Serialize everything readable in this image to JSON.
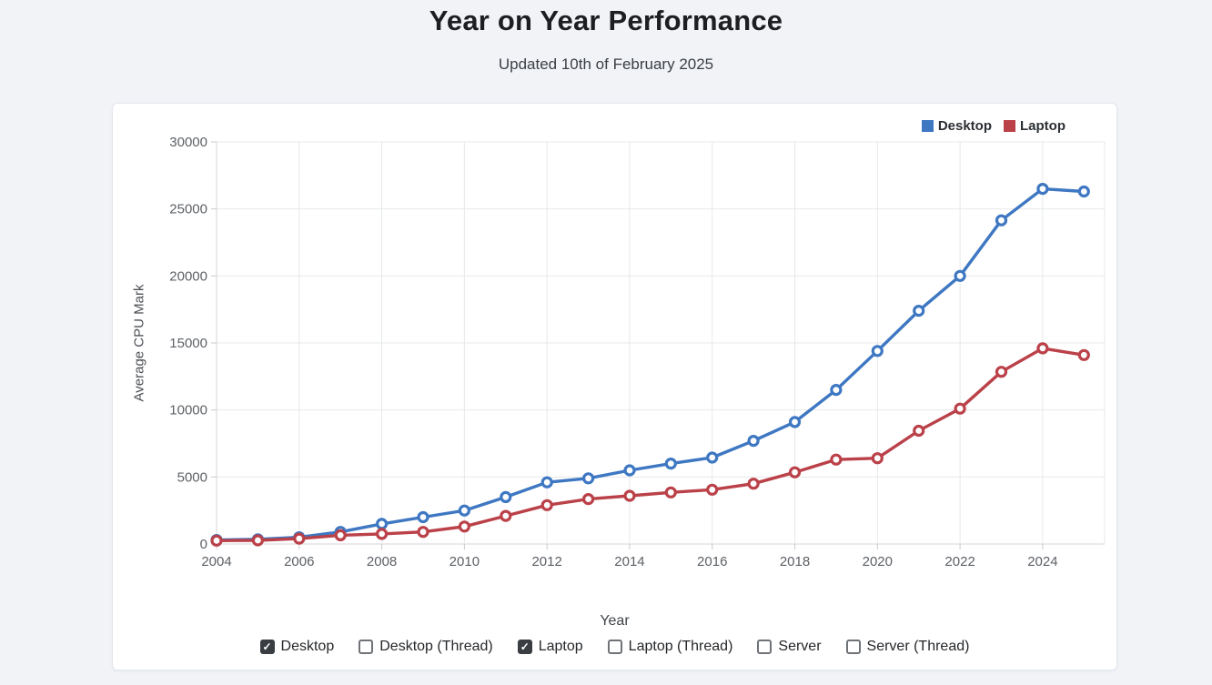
{
  "header": {
    "title": "Year on Year Performance",
    "subtitle": "Updated 10th of February 2025"
  },
  "chart_data": {
    "type": "line",
    "title": "Year on Year Performance",
    "xlabel": "Year",
    "ylabel": "Average CPU Mark",
    "x": [
      2004,
      2005,
      2006,
      2007,
      2008,
      2009,
      2010,
      2011,
      2012,
      2013,
      2014,
      2015,
      2016,
      2017,
      2018,
      2019,
      2020,
      2021,
      2022,
      2023,
      2024,
      2025
    ],
    "series": [
      {
        "name": "Desktop",
        "color": "#3e77c2",
        "values": [
          300,
          350,
          500,
          900,
          1500,
          2000,
          2500,
          3500,
          4600,
          4900,
          5500,
          6000,
          6450,
          7700,
          9100,
          11500,
          14400,
          17400,
          20000,
          24150,
          26500,
          26300
        ]
      },
      {
        "name": "Laptop",
        "color": "#bb4149",
        "values": [
          250,
          270,
          400,
          650,
          750,
          900,
          1300,
          2100,
          2900,
          3350,
          3600,
          3850,
          4050,
          4500,
          5350,
          6300,
          6400,
          8450,
          10100,
          12850,
          14600,
          14100
        ]
      }
    ],
    "xlim": [
      2004,
      2025.5
    ],
    "ylim": [
      0,
      30000
    ],
    "ytick_step": 5000,
    "xticks": [
      2004,
      2006,
      2008,
      2010,
      2012,
      2014,
      2016,
      2018,
      2020,
      2022,
      2024
    ],
    "grid": true,
    "legend_position": "top-right"
  },
  "filters": [
    {
      "label": "Desktop",
      "checked": true
    },
    {
      "label": "Desktop (Thread)",
      "checked": false
    },
    {
      "label": "Laptop",
      "checked": true
    },
    {
      "label": "Laptop (Thread)",
      "checked": false
    },
    {
      "label": "Server",
      "checked": false
    },
    {
      "label": "Server (Thread)",
      "checked": false
    }
  ],
  "colors": {
    "page_bg": "#f1f3f7",
    "card_bg": "#ffffff",
    "grid": "#e7e8ea",
    "axis": "#d4d6da",
    "tick": "#c7c9cd",
    "tick_text": "#5d6166"
  }
}
